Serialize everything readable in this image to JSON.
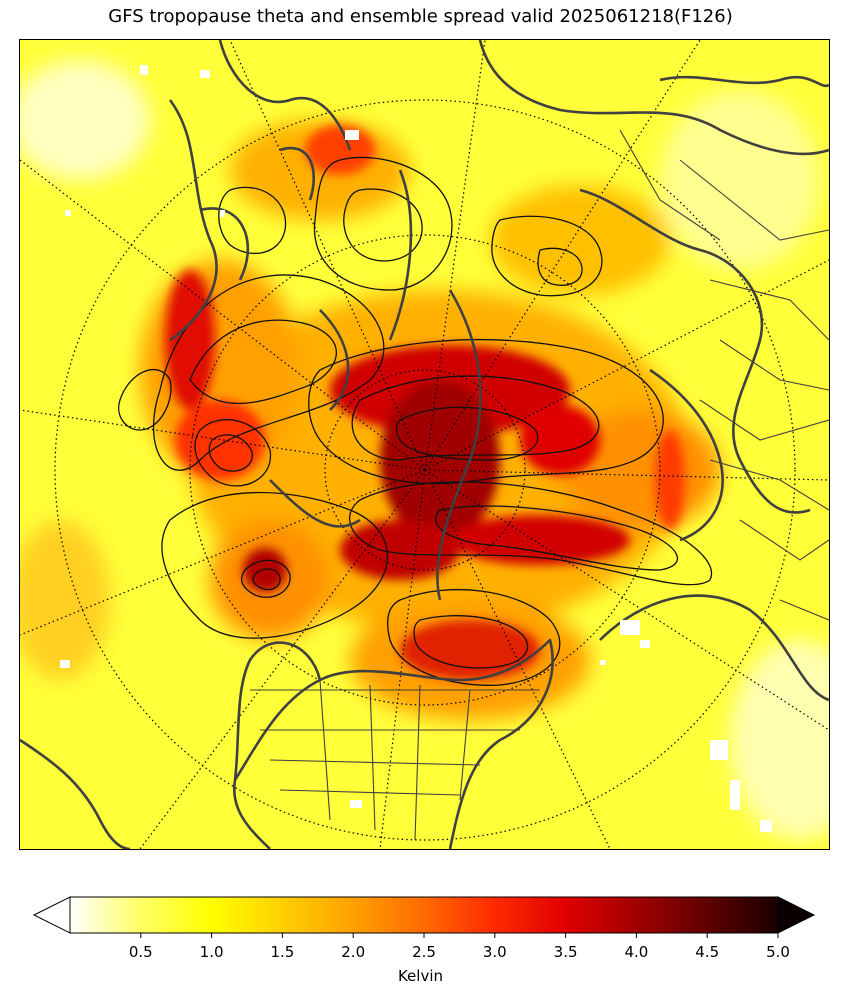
{
  "title": "GFS tropopause theta and ensemble spread valid 2025061218(F126)",
  "colorbar": {
    "label": "Kelvin",
    "ticks": [
      "0.5",
      "1.0",
      "1.5",
      "2.0",
      "2.5",
      "3.0",
      "3.5",
      "4.0",
      "4.5",
      "5.0"
    ],
    "min": 0,
    "max": 5,
    "extend": "both",
    "colormap": "hot_r",
    "colors": [
      "#ffffff",
      "#ffff66",
      "#ffff00",
      "#ffd000",
      "#ffa000",
      "#ff6a00",
      "#ff2a00",
      "#e00000",
      "#a00000",
      "#600000",
      "#1a0000"
    ]
  },
  "map": {
    "projection": "north-polar-stereographic",
    "field": "ensemble spread (shaded)",
    "overlay": "tropopause theta (black contours)",
    "coastline_color": "#404040",
    "graticule": "dotted"
  }
}
